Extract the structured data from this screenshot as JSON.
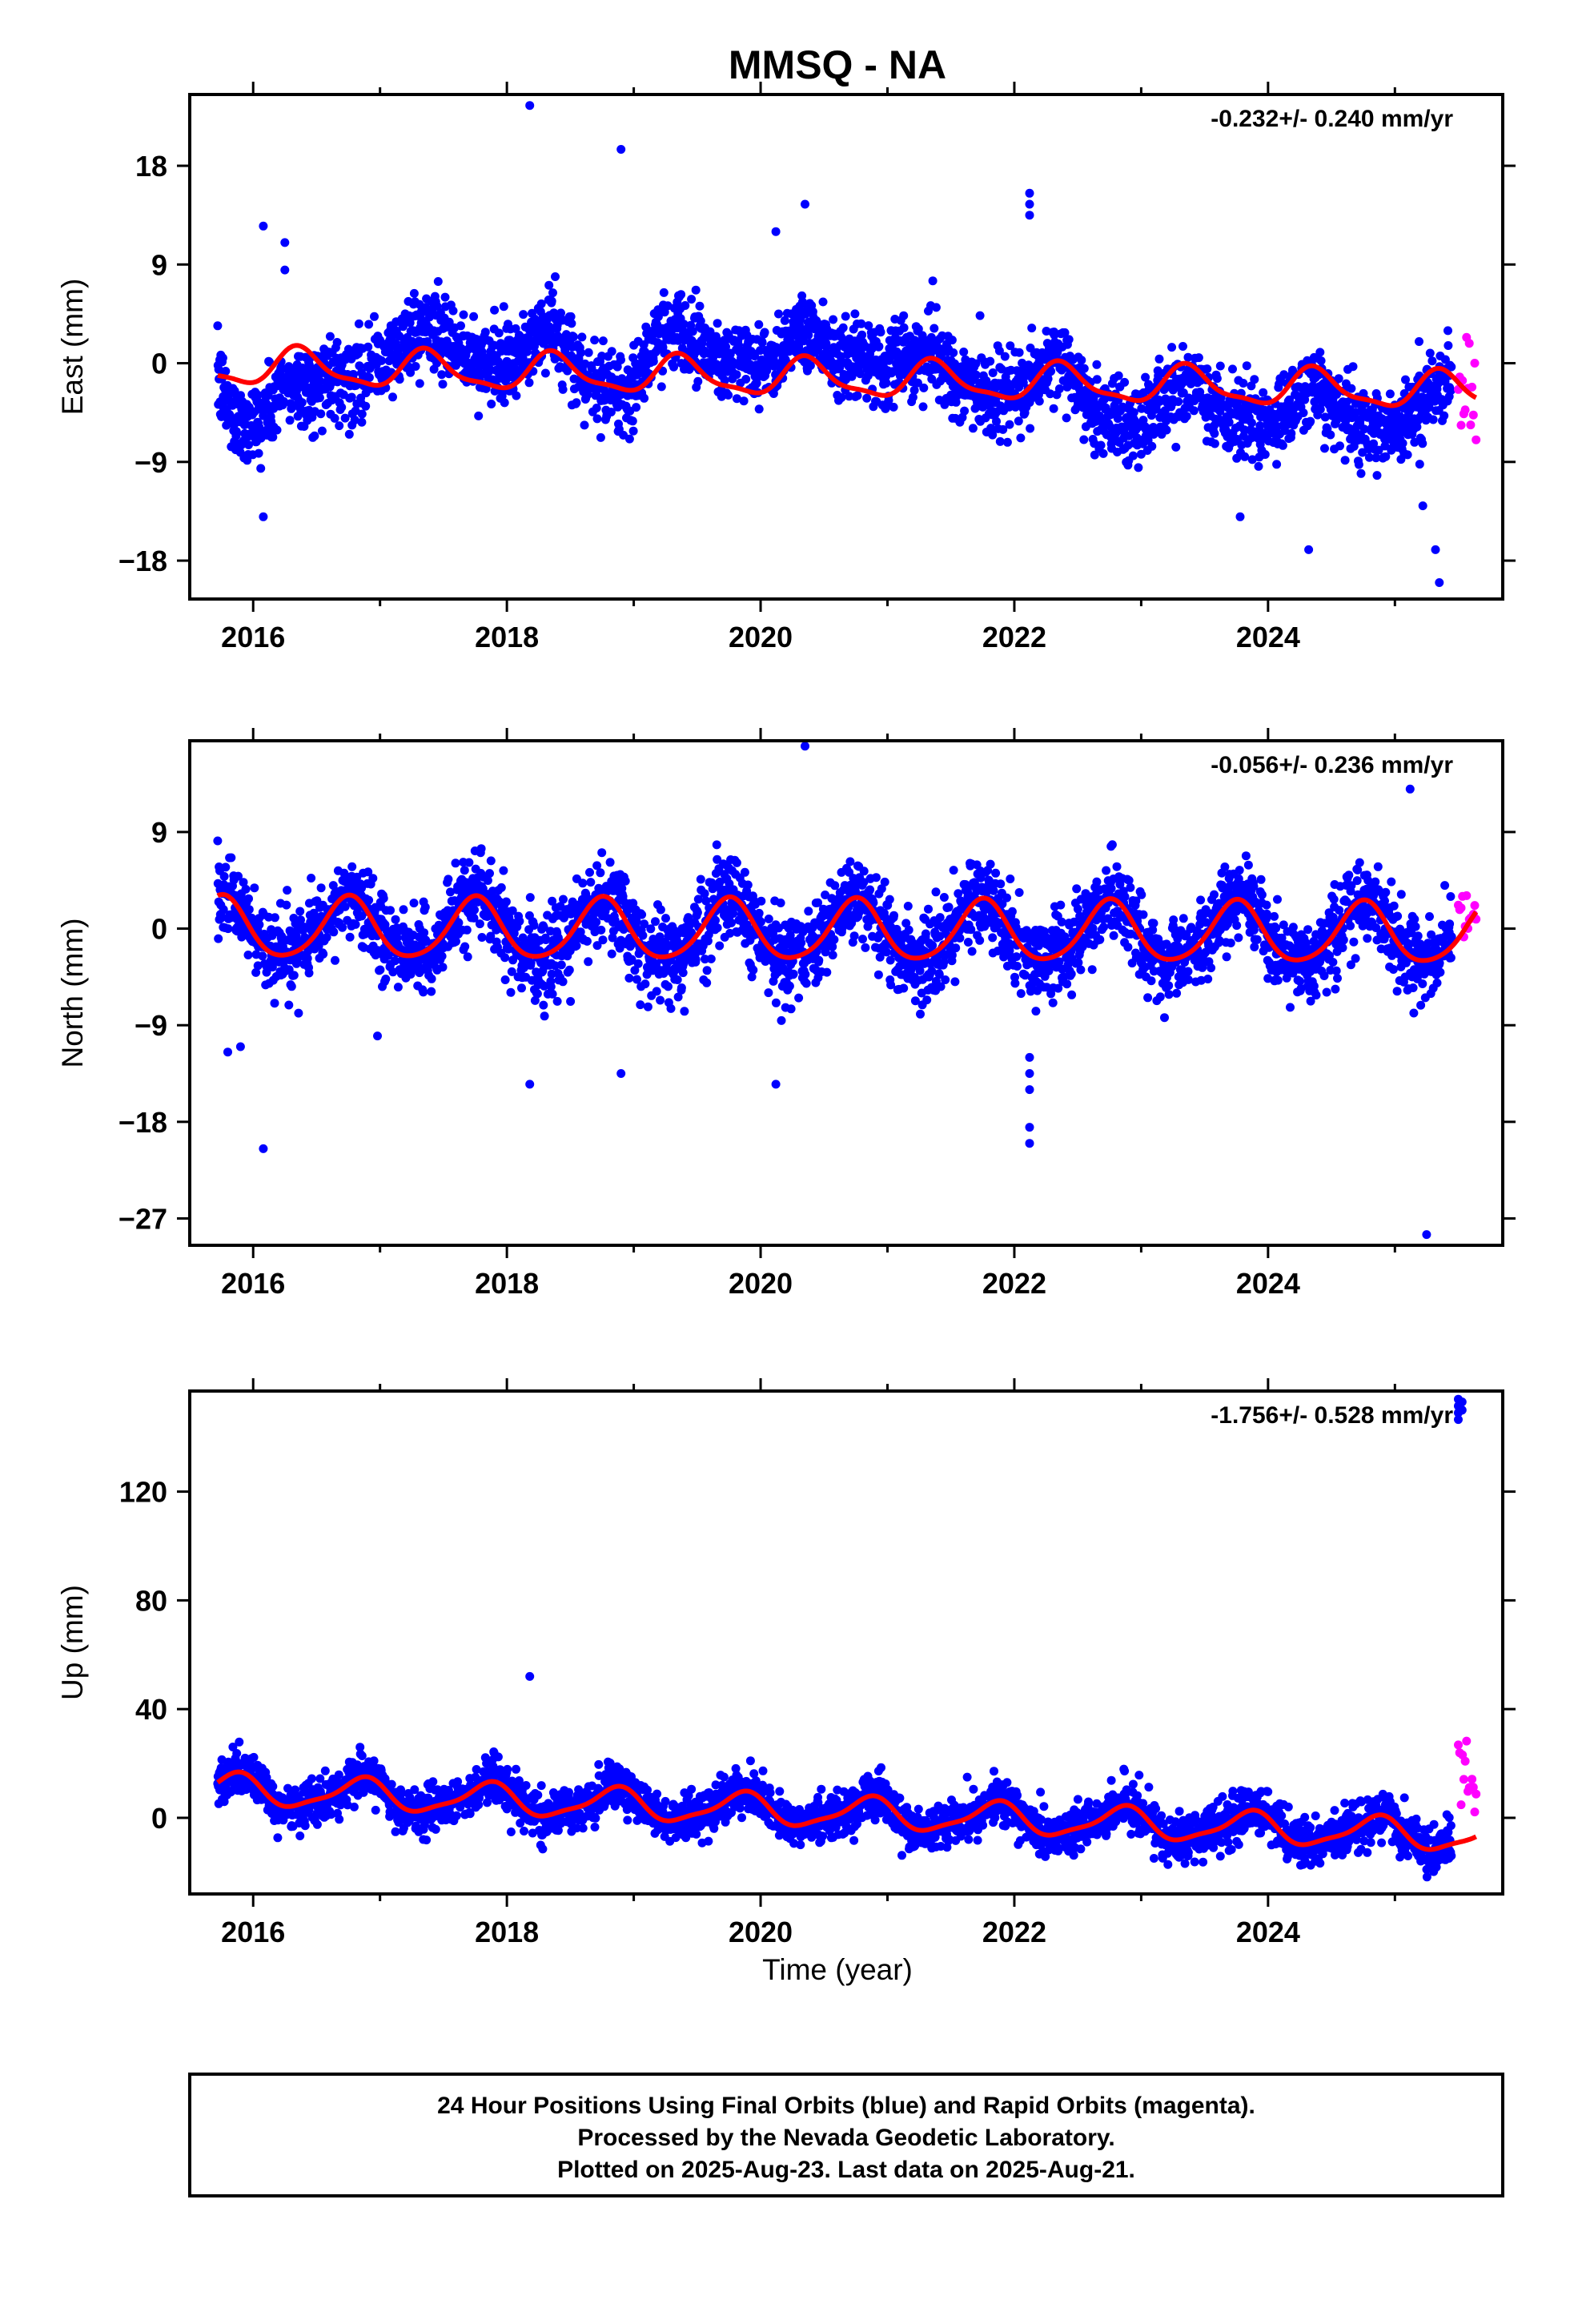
{
  "chart_data": {
    "type": "scatter",
    "title": "MMSQ - NA",
    "x_range": [
      2015.5,
      2025.85
    ],
    "x_ticks": [
      2016,
      2018,
      2020,
      2022,
      2024
    ],
    "x_tick_labels": [
      "2016",
      "2018",
      "2020",
      "2022",
      "2024"
    ],
    "xlabel": "Time (year)",
    "legend": {
      "line1": "24 Hour Positions Using Final Orbits (blue) and Rapid Orbits (magenta).",
      "line2": "Processed by the Nevada Geodetic Laboratory.",
      "line3": "Plotted on 2025-Aug-23. Last data on 2025-Aug-21."
    },
    "colors": {
      "final": "#0000ff",
      "rapid": "#ff00ff",
      "model": "#ff0000",
      "frame": "#000000"
    },
    "data_start": 2015.72,
    "final_end": 2025.45,
    "rapid_start": 2025.5,
    "data_end": 2025.64,
    "grid": false,
    "panels": [
      {
        "component": "East",
        "ylabel": "East (mm)",
        "ylim": [
          -21.5,
          24.5
        ],
        "y_ticks": [
          -18,
          -9,
          0,
          9,
          18
        ],
        "y_tick_labels": [
          "−18",
          "−9",
          "0",
          "9",
          "18"
        ],
        "rate_text": "-0.232+/- 0.240 mm/yr",
        "trend_mm_per_yr": -0.232,
        "offset_mm": -0.3,
        "annual_amplitude_mm": 1.6,
        "annual_phase_year": 0.12,
        "semiannual_amplitude_mm": 0.5,
        "semiannual_phase_year": 0.2,
        "scatter_sigma_mm": 1.8,
        "residual_anomalies": [
          {
            "x_from": 2015.7,
            "x_to": 2016.6,
            "shift_mm": -3.5
          },
          {
            "x_from": 2016.8,
            "x_to": 2018.5,
            "shift_mm": 2.0
          },
          {
            "x_from": 2019.0,
            "x_to": 2021.3,
            "shift_mm": 2.5
          },
          {
            "x_from": 2022.4,
            "x_to": 2025.45,
            "shift_mm": -2.0
          }
        ],
        "outliers": [
          {
            "x": 2016.08,
            "y": 12.5
          },
          {
            "x": 2016.25,
            "y": 11.0
          },
          {
            "x": 2016.25,
            "y": 8.5
          },
          {
            "x": 2016.08,
            "y": -14.0
          },
          {
            "x": 2018.18,
            "y": 23.5
          },
          {
            "x": 2018.9,
            "y": 19.5
          },
          {
            "x": 2020.12,
            "y": 12.0
          },
          {
            "x": 2020.35,
            "y": 14.5
          },
          {
            "x": 2022.12,
            "y": 15.5
          },
          {
            "x": 2022.12,
            "y": 14.5
          },
          {
            "x": 2022.12,
            "y": 13.5
          },
          {
            "x": 2023.78,
            "y": -14.0
          },
          {
            "x": 2024.32,
            "y": -17.0
          },
          {
            "x": 2025.32,
            "y": -17.0
          },
          {
            "x": 2025.35,
            "y": -20.0
          },
          {
            "x": 2025.22,
            "y": -13.0
          }
        ],
        "rapid_range": [
          -7,
          4
        ]
      },
      {
        "component": "North",
        "ylabel": "North (mm)",
        "ylim": [
          -29.5,
          17.5
        ],
        "y_ticks": [
          -27,
          -18,
          -9,
          0,
          9
        ],
        "y_tick_labels": [
          "−27",
          "−18",
          "−9",
          "0",
          "9"
        ],
        "rate_text": "-0.056+/- 0.236 mm/yr",
        "trend_mm_per_yr": -0.056,
        "offset_mm": 0.0,
        "annual_amplitude_mm": 2.8,
        "annual_phase_year": 0.5,
        "semiannual_amplitude_mm": 0.4,
        "semiannual_phase_year": 0.15,
        "scatter_sigma_mm": 1.9,
        "residual_anomalies": [],
        "outliers": [
          {
            "x": 2016.08,
            "y": -20.5
          },
          {
            "x": 2018.18,
            "y": -14.5
          },
          {
            "x": 2018.9,
            "y": -13.5
          },
          {
            "x": 2020.12,
            "y": -14.5
          },
          {
            "x": 2020.35,
            "y": 17.0
          },
          {
            "x": 2022.12,
            "y": -12.0
          },
          {
            "x": 2022.12,
            "y": -13.5
          },
          {
            "x": 2022.12,
            "y": -15.0
          },
          {
            "x": 2022.12,
            "y": -18.5
          },
          {
            "x": 2022.12,
            "y": -20.0
          },
          {
            "x": 2025.12,
            "y": 13.0
          },
          {
            "x": 2025.25,
            "y": -28.5
          },
          {
            "x": 2015.8,
            "y": -11.5
          },
          {
            "x": 2015.9,
            "y": -11.0
          },
          {
            "x": 2016.98,
            "y": -10.0
          }
        ],
        "rapid_range": [
          -1.5,
          3.5
        ]
      },
      {
        "component": "Up",
        "ylabel": "Up (mm)",
        "ylim": [
          -28,
          157
        ],
        "y_ticks": [
          0,
          40,
          80,
          120
        ],
        "y_tick_labels": [
          "0",
          "40",
          "80",
          "120"
        ],
        "rate_text": "-1.756+/- 0.528 mm/yr",
        "trend_mm_per_yr": -1.756,
        "offset_mm": 10.5,
        "annual_amplitude_mm": 5.5,
        "annual_phase_year": 0.6,
        "semiannual_amplitude_mm": 1.5,
        "semiannual_phase_year": 0.3,
        "scatter_sigma_mm": 4.0,
        "residual_anomalies": [],
        "outliers": [
          {
            "x": 2018.18,
            "y": 52.0
          },
          {
            "x": 2019.92,
            "y": 21.0
          },
          {
            "x": 2025.5,
            "y": 154.0
          },
          {
            "x": 2025.5,
            "y": 151.5
          },
          {
            "x": 2025.5,
            "y": 149.0
          },
          {
            "x": 2025.5,
            "y": 146.5
          },
          {
            "x": 2025.53,
            "y": 153.0
          },
          {
            "x": 2025.53,
            "y": 150.0
          }
        ],
        "rapid_range": [
          0,
          29
        ]
      }
    ]
  }
}
